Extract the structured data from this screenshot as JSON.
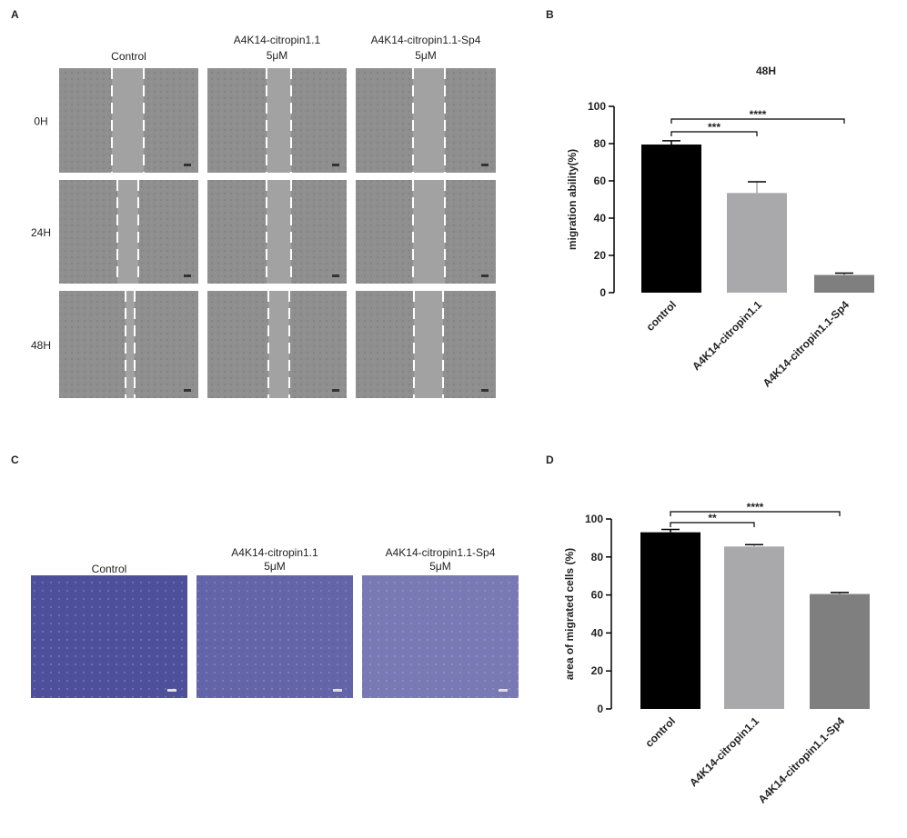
{
  "panel_labels": [
    "A",
    "B",
    "C",
    "D"
  ],
  "panel_a": {
    "columns": [
      [
        "Control"
      ],
      [
        "A4K14-citropin1.1",
        "5μM"
      ],
      [
        "A4K14-citropin1.1-Sp4",
        "5μM"
      ]
    ],
    "rows": [
      "0H",
      "24H",
      "48H"
    ]
  },
  "panel_c": {
    "columns": [
      [
        "Control"
      ],
      [
        "A4K14-citropin1.1",
        "5μM"
      ],
      [
        "A4K14-citropin1.1-Sp4",
        "5μM"
      ]
    ]
  },
  "chart_data": [
    {
      "type": "bar",
      "title": "48H",
      "y_label": "migration ability(%)",
      "categories": [
        "control",
        "A4K14-citropin1.1",
        "A4K14-citropin1.1-Sp4"
      ],
      "values": [
        79.5,
        53.5,
        9.5
      ],
      "errors": [
        2,
        6,
        1
      ],
      "colors": [
        "#000000",
        "#a9a9ab",
        "#7f7f7f"
      ],
      "ylim": [
        0,
        100
      ],
      "yticks": [
        0,
        20,
        40,
        60,
        80,
        100
      ],
      "significance": [
        "***",
        "****"
      ]
    },
    {
      "type": "bar",
      "y_label": "area of migrated cells (%)",
      "categories": [
        "control",
        "A4K14-citropin1.1",
        "A4K14-citropin1.1-Sp4"
      ],
      "values": [
        93,
        85.5,
        60.5
      ],
      "errors": [
        1.5,
        1,
        0.8
      ],
      "colors": [
        "#000000",
        "#a9a9ab",
        "#7f7f7f"
      ],
      "ylim": [
        0,
        100
      ],
      "yticks": [
        0,
        20,
        40,
        60,
        80,
        100
      ],
      "significance": [
        "**",
        "****"
      ]
    }
  ]
}
